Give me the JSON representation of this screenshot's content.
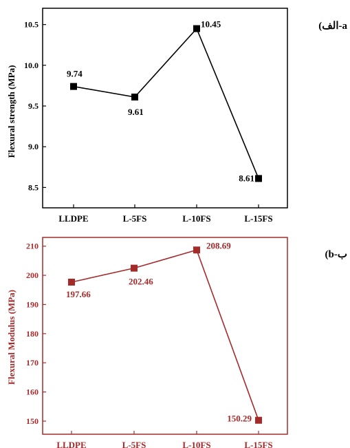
{
  "chart_data": [
    {
      "type": "line",
      "panel_label": "(الف-a",
      "categories": [
        "LLDPE",
        "L-5FS",
        "L-10FS",
        "L-15FS"
      ],
      "values": [
        9.74,
        9.61,
        10.45,
        8.61
      ],
      "data_labels": [
        "9.74",
        "9.61",
        "10.45",
        "8.61"
      ],
      "title": "",
      "xlabel": "",
      "ylabel": "Flexural strength (MPa)",
      "ylim": [
        8.25,
        10.7
      ],
      "yticks": [
        8.5,
        9.0,
        9.5,
        10.0,
        10.5
      ],
      "ytick_labels": [
        "8.5",
        "9.0",
        "9.5",
        "10.0",
        "10.5"
      ],
      "grid": false,
      "marker": "square",
      "color": "#000000"
    },
    {
      "type": "line",
      "panel_label": "(b-ب",
      "categories": [
        "LLDPE",
        "L-5FS",
        "L-10FS",
        "L-15FS"
      ],
      "values": [
        197.66,
        202.46,
        208.69,
        150.29
      ],
      "data_labels": [
        "197.66",
        "202.46",
        "208.69",
        "150.29"
      ],
      "title": "",
      "xlabel": "",
      "ylabel": "Flexural Modulus (MPa)",
      "ylim": [
        145.5,
        213
      ],
      "yticks": [
        150,
        160,
        170,
        180,
        190,
        200,
        210
      ],
      "ytick_labels": [
        "150",
        "160",
        "170",
        "180",
        "190",
        "200",
        "210"
      ],
      "grid": false,
      "marker": "square",
      "color": "#a52a2a"
    }
  ]
}
